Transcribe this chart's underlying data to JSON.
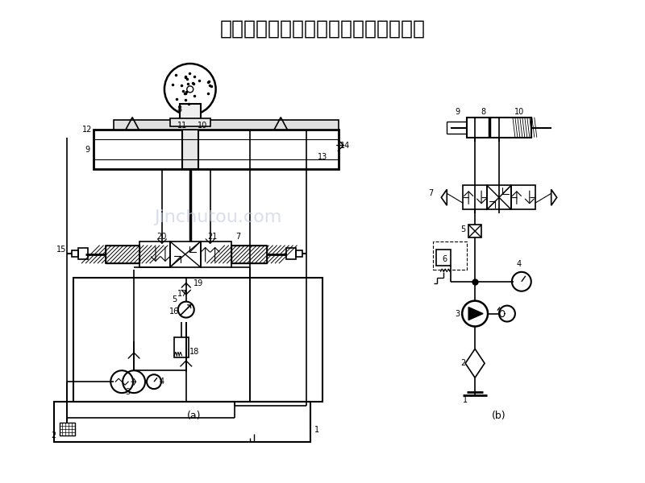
{
  "title": "一、平面磨床液压传动系统的工作原理",
  "title_fontsize": 18,
  "bg_color": "#ffffff",
  "line_color": "#000000",
  "watermark_text": "Jinchutou.com",
  "watermark_color": "#c8d0e8",
  "label_a": "(a)",
  "label_b": "(b)"
}
